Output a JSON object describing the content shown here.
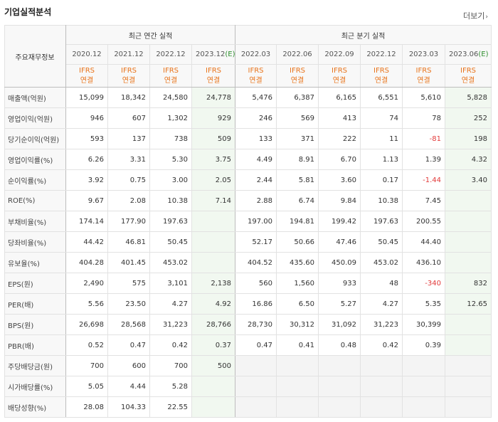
{
  "header": {
    "title": "기업실적분석",
    "more": "더보기"
  },
  "table": {
    "row_header": "주요재무정보",
    "groups": {
      "annual": "최근 연간 실적",
      "quarterly": "최근 분기 실적"
    },
    "periods": [
      "2020.12",
      "2021.12",
      "2022.12",
      "2023.12",
      "2022.03",
      "2022.06",
      "2022.09",
      "2022.12",
      "2023.03",
      "2023.06"
    ],
    "estimate_mark": "(E)",
    "ifrs": "IFRS",
    "basis": "연결",
    "rows": [
      {
        "label": "매출액(억원)",
        "values": [
          "15,099",
          "18,342",
          "24,580",
          "24,778",
          "5,476",
          "6,387",
          "6,165",
          "6,551",
          "5,610",
          "5,828"
        ]
      },
      {
        "label": "영업이익(억원)",
        "values": [
          "946",
          "607",
          "1,302",
          "929",
          "246",
          "569",
          "413",
          "74",
          "78",
          "252"
        ]
      },
      {
        "label": "당기순이익(억원)",
        "values": [
          "593",
          "137",
          "738",
          "509",
          "133",
          "371",
          "222",
          "11",
          "-81",
          "198"
        ]
      },
      {
        "label": "영업이익률(%)",
        "values": [
          "6.26",
          "3.31",
          "5.30",
          "3.75",
          "4.49",
          "8.91",
          "6.70",
          "1.13",
          "1.39",
          "4.32"
        ]
      },
      {
        "label": "순이익률(%)",
        "values": [
          "3.92",
          "0.75",
          "3.00",
          "2.05",
          "2.44",
          "5.81",
          "3.60",
          "0.17",
          "-1.44",
          "3.40"
        ]
      },
      {
        "label": "ROE(%)",
        "values": [
          "9.67",
          "2.08",
          "10.38",
          "7.14",
          "2.88",
          "6.74",
          "9.84",
          "10.38",
          "7.45",
          ""
        ]
      },
      {
        "label": "부채비율(%)",
        "values": [
          "174.14",
          "177.90",
          "197.63",
          "",
          "197.00",
          "194.81",
          "199.42",
          "197.63",
          "200.55",
          ""
        ]
      },
      {
        "label": "당좌비율(%)",
        "values": [
          "44.42",
          "46.81",
          "50.45",
          "",
          "52.17",
          "50.66",
          "47.46",
          "50.45",
          "44.40",
          ""
        ]
      },
      {
        "label": "유보율(%)",
        "values": [
          "404.28",
          "401.45",
          "453.02",
          "",
          "404.52",
          "435.60",
          "450.09",
          "453.02",
          "436.10",
          ""
        ]
      },
      {
        "label": "EPS(원)",
        "values": [
          "2,490",
          "575",
          "3,101",
          "2,138",
          "560",
          "1,560",
          "933",
          "48",
          "-340",
          "832"
        ]
      },
      {
        "label": "PER(배)",
        "values": [
          "5.56",
          "23.50",
          "4.27",
          "4.92",
          "16.86",
          "6.50",
          "5.27",
          "4.27",
          "5.35",
          "12.65"
        ]
      },
      {
        "label": "BPS(원)",
        "values": [
          "26,698",
          "28,568",
          "31,223",
          "28,766",
          "28,730",
          "30,312",
          "31,092",
          "31,223",
          "30,399",
          ""
        ]
      },
      {
        "label": "PBR(배)",
        "values": [
          "0.52",
          "0.47",
          "0.42",
          "0.37",
          "0.47",
          "0.41",
          "0.48",
          "0.42",
          "0.39",
          ""
        ]
      },
      {
        "label": "주당배당금(원)",
        "values": [
          "700",
          "600",
          "700",
          "500",
          "",
          "",
          "",
          "",
          "",
          ""
        ]
      },
      {
        "label": "시가배당률(%)",
        "values": [
          "5.05",
          "4.44",
          "5.28",
          "",
          "",
          "",
          "",
          "",
          "",
          ""
        ]
      },
      {
        "label": "배당성향(%)",
        "values": [
          "28.08",
          "104.33",
          "22.55",
          "",
          "",
          "",
          "",
          "",
          "",
          ""
        ]
      }
    ],
    "colors": {
      "ifrs": "#e8731a",
      "estimate_bg": "#f1f8f0",
      "estimate_text": "#2f8f2f",
      "negative": "#e23a3a"
    }
  }
}
